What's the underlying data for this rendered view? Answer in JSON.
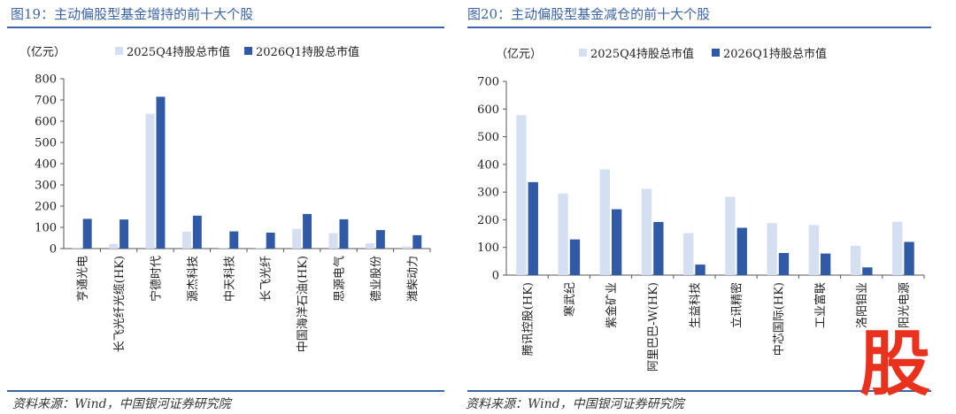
{
  "colors": {
    "q4": "#d4dff1",
    "q1": "#3059a6",
    "title": "#3c64a8",
    "watermark": "#e8321e"
  },
  "chart_data": [
    {
      "type": "bar",
      "title": "图19：主动偏股型基金增持的前十大个股",
      "ylabel": "（亿元）",
      "ylim": [
        0,
        800
      ],
      "yticks": [
        0,
        100,
        200,
        300,
        400,
        500,
        600,
        700,
        800
      ],
      "legend_position": "top",
      "categories": [
        "亨通光电",
        "长飞光纤光缆(HK)",
        "宁德时代",
        "源杰科技",
        "中天科技",
        "长飞光纤",
        "中国海洋石油(HK)",
        "思源电气",
        "德业股份",
        "潍柴动力"
      ],
      "series": [
        {
          "name": "2025Q4持股总市值",
          "values": [
            5,
            22,
            635,
            80,
            4,
            3,
            93,
            73,
            25,
            10
          ]
        },
        {
          "name": "2026Q1持股总市值",
          "values": [
            140,
            137,
            715,
            155,
            81,
            75,
            163,
            138,
            87,
            63
          ]
        }
      ],
      "source": "资料来源：Wind，中国银河证券研究院"
    },
    {
      "type": "bar",
      "title": "图20：主动偏股型基金减仓的前十大个股",
      "ylabel": "（亿元）",
      "ylim": [
        0,
        700
      ],
      "yticks": [
        0,
        100,
        200,
        300,
        400,
        500,
        600,
        700
      ],
      "legend_position": "top",
      "categories": [
        "腾讯控股(HK)",
        "寒武纪",
        "紫金矿业",
        "阿里巴巴-W(HK)",
        "生益科技",
        "立讯精密",
        "中芯国际(HK)",
        "工业富联",
        "洛阳钼业",
        "阳光电源"
      ],
      "series": [
        {
          "name": "2025Q4持股总市值",
          "values": [
            578,
            295,
            382,
            312,
            152,
            283,
            188,
            181,
            106,
            193
          ]
        },
        {
          "name": "2026Q1持股总市值",
          "values": [
            336,
            129,
            238,
            192,
            38,
            171,
            80,
            78,
            28,
            120
          ]
        }
      ],
      "source": "资料来源：Wind，中国银河证券研究院"
    }
  ],
  "watermark_text": "股"
}
